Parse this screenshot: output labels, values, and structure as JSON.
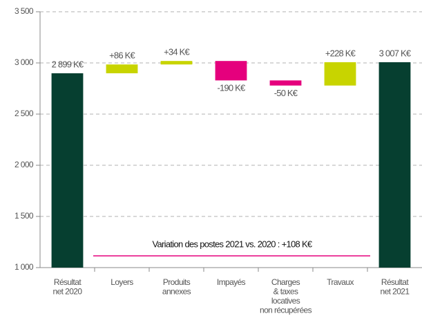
{
  "chart_data": {
    "type": "waterfall",
    "categories": [
      [
        "Résultat",
        "net 2020"
      ],
      [
        "Loyers"
      ],
      [
        "Produits",
        "annexes"
      ],
      [
        "Impayés"
      ],
      [
        "Charges",
        "& taxes",
        "locatives",
        "non récupérées"
      ],
      [
        "Travaux"
      ],
      [
        "Résultat",
        "net 2021"
      ]
    ],
    "values": [
      2899,
      86,
      34,
      -190,
      -50,
      228,
      3007
    ],
    "value_labels": [
      "2 899 K€",
      "+86 K€",
      "+34 K€",
      "-190 K€",
      "-50 K€",
      "+228 K€",
      "3 007 K€"
    ],
    "colors": {
      "total": "#063f30",
      "increase": "#c8d400",
      "decrease": "#e5007d"
    },
    "ylim": [
      1000,
      3500
    ],
    "yticks": [
      {
        "value": 1000,
        "label": "1 000"
      },
      {
        "value": 1500,
        "label": "1 500"
      },
      {
        "value": 2000,
        "label": "2 000"
      },
      {
        "value": 2500,
        "label": "2 500"
      },
      {
        "value": 3000,
        "label": "3 000"
      },
      {
        "value": 3500,
        "label": "3 500"
      }
    ],
    "grid": true,
    "annotation": "Variation des postes 2021 vs. 2020 : +108 K€"
  }
}
